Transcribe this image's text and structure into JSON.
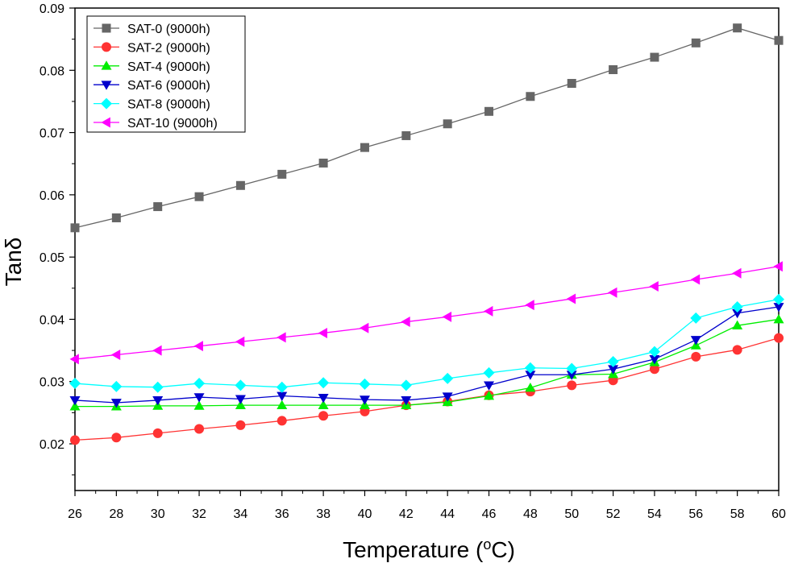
{
  "chart_data": {
    "type": "line",
    "xlabel": "Temperature (",
    "xlabel_sup": "o",
    "xlabel_suffix": "C)",
    "ylabel": "Tanδ",
    "xlim": [
      26,
      60
    ],
    "ylim": [
      0.0125,
      0.09
    ],
    "x": [
      26,
      28,
      30,
      32,
      34,
      36,
      38,
      40,
      42,
      44,
      46,
      48,
      50,
      52,
      54,
      56,
      58,
      60
    ],
    "x_tick_labels": [
      "26",
      "28",
      "30",
      "32",
      "34",
      "36",
      "38",
      "40",
      "42",
      "44",
      "46",
      "48",
      "50",
      "52",
      "54",
      "56",
      "58",
      "60"
    ],
    "y_ticks": [
      0.02,
      0.03,
      0.04,
      0.05,
      0.06,
      0.07,
      0.08,
      0.09
    ],
    "y_tick_labels": [
      "0.02",
      "0.03",
      "0.04",
      "0.05",
      "0.06",
      "0.07",
      "0.08",
      "0.09"
    ],
    "legend_position": "top-left",
    "grid": false,
    "series": [
      {
        "name": "SAT-0 (9000h)",
        "color": "#666666",
        "marker": "square",
        "values": [
          0.0547,
          0.0563,
          0.0581,
          0.0597,
          0.0615,
          0.0633,
          0.0651,
          0.0676,
          0.0695,
          0.0714,
          0.0734,
          0.0758,
          0.0779,
          0.0801,
          0.0821,
          0.0844,
          0.0868,
          0.0848
        ]
      },
      {
        "name": "SAT-2 (9000h)",
        "color": "#ff3333",
        "marker": "circle",
        "values": [
          0.0206,
          0.021,
          0.0217,
          0.0224,
          0.023,
          0.0237,
          0.0245,
          0.0252,
          0.0262,
          0.0268,
          0.0278,
          0.0284,
          0.0294,
          0.0302,
          0.032,
          0.034,
          0.0351,
          0.037
        ]
      },
      {
        "name": "SAT-4 (9000h)",
        "color": "#00ee00",
        "marker": "triangle-up",
        "values": [
          0.026,
          0.026,
          0.0261,
          0.0261,
          0.0262,
          0.0262,
          0.0262,
          0.0262,
          0.0262,
          0.0267,
          0.0277,
          0.029,
          0.0311,
          0.0312,
          0.0331,
          0.0358,
          0.039,
          0.04
        ]
      },
      {
        "name": "SAT-6 (9000h)",
        "color": "#0000cc",
        "marker": "triangle-down",
        "values": [
          0.027,
          0.0266,
          0.027,
          0.0275,
          0.0272,
          0.0277,
          0.0274,
          0.0271,
          0.027,
          0.0276,
          0.0294,
          0.0311,
          0.0311,
          0.032,
          0.0336,
          0.0367,
          0.041,
          0.042
        ]
      },
      {
        "name": "SAT-8 (9000h)",
        "color": "#00ffff",
        "marker": "diamond",
        "values": [
          0.0297,
          0.0292,
          0.0291,
          0.0297,
          0.0294,
          0.0291,
          0.0298,
          0.0296,
          0.0294,
          0.0305,
          0.0314,
          0.0322,
          0.0321,
          0.0332,
          0.0348,
          0.0402,
          0.042,
          0.0432
        ]
      },
      {
        "name": "SAT-10 (9000h)",
        "color": "#ff00ff",
        "marker": "triangle-left",
        "values": [
          0.0336,
          0.0343,
          0.035,
          0.0357,
          0.0364,
          0.0371,
          0.0378,
          0.0386,
          0.0396,
          0.0404,
          0.0413,
          0.0423,
          0.0433,
          0.0443,
          0.0453,
          0.0464,
          0.0474,
          0.0485
        ]
      }
    ]
  }
}
